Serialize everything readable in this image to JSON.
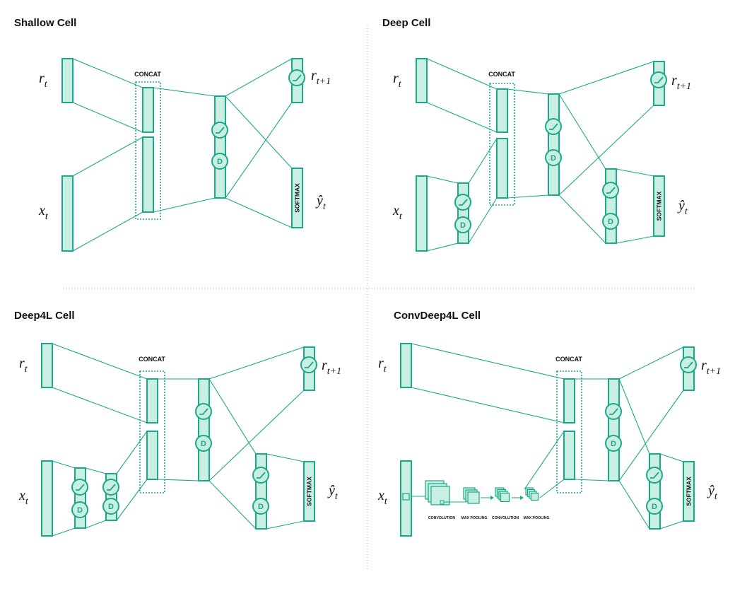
{
  "panels": {
    "shallow": {
      "title": "Shallow Cell"
    },
    "deep": {
      "title": "Deep Cell"
    },
    "deep4l": {
      "title": "Deep4L Cell"
    },
    "convdeep4l": {
      "title": "ConvDeep4L Cell"
    }
  },
  "labels": {
    "concat": "CONCAT",
    "softmax": "SOFTMAX",
    "dropout": "D",
    "r_t": "r",
    "r_t_sub": "t",
    "r_next_sub": "t+1",
    "x_t": "x",
    "x_t_sub": "t",
    "y_hat": "ŷ",
    "y_hat_sub": "t"
  },
  "conv_stages": [
    "CONVOLUTION",
    "MAX POOLING",
    "CONVOLUTION",
    "MAX POOLING"
  ],
  "colors": {
    "accent": "#1aa88a",
    "fill": "#c8efe2"
  }
}
